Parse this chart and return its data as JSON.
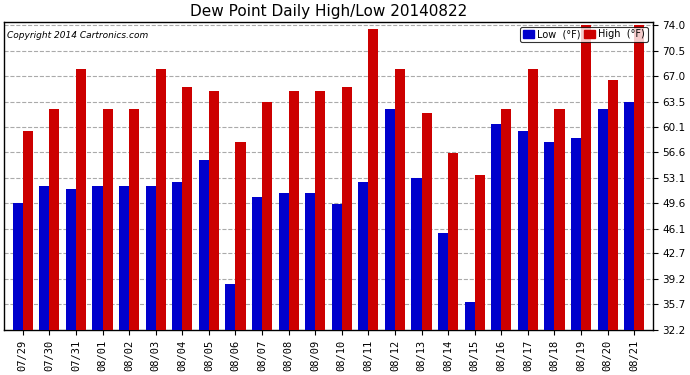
{
  "title": "Dew Point Daily High/Low 20140822",
  "copyright": "Copyright 2014 Cartronics.com",
  "dates": [
    "07/29",
    "07/30",
    "07/31",
    "08/01",
    "08/02",
    "08/03",
    "08/04",
    "08/05",
    "08/06",
    "08/07",
    "08/08",
    "08/09",
    "08/10",
    "08/11",
    "08/12",
    "08/13",
    "08/14",
    "08/15",
    "08/16",
    "08/17",
    "08/18",
    "08/19",
    "08/20",
    "08/21"
  ],
  "low": [
    49.6,
    52.0,
    51.5,
    52.0,
    52.0,
    52.0,
    52.5,
    55.5,
    38.5,
    50.5,
    51.0,
    51.0,
    49.5,
    52.5,
    62.5,
    53.0,
    45.5,
    36.0,
    60.5,
    59.5,
    58.0,
    58.5,
    62.5,
    63.5
  ],
  "high": [
    59.5,
    62.5,
    68.0,
    62.5,
    62.5,
    68.0,
    65.5,
    65.0,
    58.0,
    63.5,
    65.0,
    65.0,
    65.5,
    73.5,
    68.0,
    62.0,
    56.5,
    53.5,
    62.5,
    68.0,
    62.5,
    74.0,
    66.5,
    74.0
  ],
  "low_color": "#0000cc",
  "high_color": "#cc0000",
  "bg_color": "#ffffff",
  "grid_color": "#aaaaaa",
  "ylim_min": 32.2,
  "ylim_max": 74.0,
  "yticks": [
    32.2,
    35.7,
    39.2,
    42.7,
    46.1,
    49.6,
    53.1,
    56.6,
    60.1,
    63.5,
    67.0,
    70.5,
    74.0
  ],
  "bar_width": 0.38,
  "title_fontsize": 11,
  "tick_fontsize": 7.5,
  "border_color": "#000000"
}
